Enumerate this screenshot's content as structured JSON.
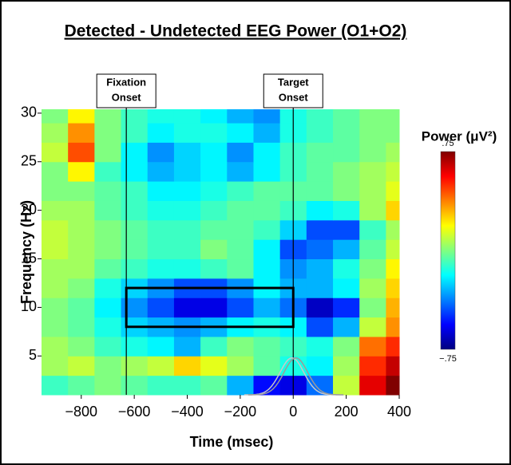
{
  "chart_data": {
    "type": "heatmap",
    "title": "Detected - Undetected EEG Power (O1+O2)",
    "xlabel": "Time (msec)",
    "ylabel": "Frequency (Hz)",
    "xlim": [
      -950,
      400
    ],
    "ylim": [
      1,
      30.4
    ],
    "xticks": [
      {
        "value": -800,
        "label": "−800"
      },
      {
        "value": -600,
        "label": "−600"
      },
      {
        "value": -400,
        "label": "−400"
      },
      {
        "value": -200,
        "label": "−200"
      },
      0,
      200,
      400
    ],
    "yticks": [
      5,
      10,
      15,
      20,
      25,
      30
    ],
    "xbins": [
      -950,
      -850,
      -750,
      -650,
      -550,
      -450,
      -350,
      -250,
      -150,
      -50,
      50,
      150,
      250,
      350,
      400
    ],
    "ybins": [
      1,
      3,
      5,
      7,
      9,
      11,
      13,
      15,
      17,
      19,
      21,
      23,
      25,
      27,
      29,
      30.4
    ],
    "z": [
      [
        -0.1,
        -0.05,
        0.0,
        -0.05,
        -0.1,
        -0.1,
        -0.05,
        -0.3,
        -0.55,
        -0.6,
        -0.4,
        0.1,
        0.6,
        0.75
      ],
      [
        0.05,
        0.1,
        0.0,
        0.05,
        0.1,
        0.25,
        0.15,
        0.05,
        -0.05,
        -0.15,
        -0.2,
        0.05,
        0.5,
        0.65
      ],
      [
        0.05,
        0.0,
        -0.1,
        -0.15,
        -0.2,
        -0.3,
        -0.1,
        0.0,
        -0.05,
        -0.1,
        -0.15,
        0.0,
        0.4,
        0.5
      ],
      [
        0.0,
        -0.05,
        -0.15,
        -0.25,
        -0.3,
        -0.35,
        -0.3,
        -0.2,
        -0.15,
        -0.2,
        -0.45,
        -0.3,
        0.1,
        0.35
      ],
      [
        0.0,
        -0.05,
        -0.2,
        -0.35,
        -0.45,
        -0.6,
        -0.6,
        -0.45,
        -0.3,
        -0.4,
        -0.65,
        -0.5,
        0.0,
        0.3
      ],
      [
        0.05,
        0.0,
        -0.15,
        -0.25,
        -0.35,
        -0.45,
        -0.45,
        -0.35,
        -0.2,
        -0.3,
        -0.3,
        -0.2,
        0.05,
        0.25
      ],
      [
        0.05,
        0.05,
        -0.05,
        -0.1,
        -0.15,
        -0.15,
        -0.1,
        -0.05,
        -0.2,
        -0.35,
        -0.3,
        -0.15,
        0.0,
        0.2
      ],
      [
        0.1,
        0.05,
        0.0,
        -0.05,
        -0.1,
        -0.1,
        0.0,
        -0.05,
        -0.2,
        -0.45,
        -0.4,
        -0.3,
        -0.05,
        0.1
      ],
      [
        0.1,
        0.05,
        0.0,
        -0.05,
        -0.1,
        -0.1,
        -0.05,
        -0.05,
        -0.1,
        -0.25,
        -0.45,
        -0.45,
        -0.1,
        0.05
      ],
      [
        0.05,
        0.05,
        -0.05,
        -0.1,
        -0.15,
        -0.15,
        -0.1,
        -0.05,
        -0.05,
        -0.1,
        -0.2,
        -0.15,
        0.05,
        0.25
      ],
      [
        0.0,
        0.0,
        -0.05,
        -0.1,
        -0.2,
        -0.2,
        -0.15,
        -0.1,
        -0.05,
        -0.05,
        -0.05,
        0.0,
        0.05,
        0.15
      ],
      [
        0.0,
        0.2,
        -0.1,
        -0.2,
        -0.3,
        -0.25,
        -0.2,
        -0.3,
        -0.2,
        -0.1,
        -0.05,
        0.0,
        0.05,
        0.1
      ],
      [
        0.1,
        0.45,
        0.0,
        -0.2,
        -0.35,
        -0.25,
        -0.2,
        -0.35,
        -0.2,
        -0.1,
        -0.05,
        -0.05,
        0.0,
        0.05
      ],
      [
        0.05,
        0.35,
        0.0,
        -0.1,
        -0.2,
        -0.15,
        -0.15,
        -0.2,
        -0.3,
        -0.15,
        -0.1,
        -0.05,
        0.0,
        0.0
      ],
      [
        0.0,
        0.2,
        0.0,
        -0.1,
        -0.15,
        -0.15,
        -0.2,
        -0.3,
        -0.35,
        -0.15,
        -0.1,
        -0.05,
        0.0,
        0.0
      ]
    ],
    "colorbar": {
      "title": "Power (μV²)",
      "clim": [
        -0.75,
        0.75
      ],
      "ticks": [
        {
          "value": 0.75,
          "label": ".75"
        },
        {
          "value": -0.75,
          "label": "−.75"
        }
      ]
    },
    "annotations": [
      {
        "lines": [
          "Fixation",
          "Onset"
        ],
        "x": -630
      },
      {
        "lines": [
          "Target",
          "Onset"
        ],
        "x": 0
      }
    ],
    "box": {
      "x": [
        -630,
        0
      ],
      "y": [
        8,
        12
      ]
    },
    "curves": [
      {
        "center": -5,
        "sd": 45,
        "peak": 4.8,
        "color": "#c8c8c8"
      },
      {
        "center": 10,
        "sd": 45,
        "peak": 4.8,
        "color": "#9a9a9a"
      }
    ]
  }
}
